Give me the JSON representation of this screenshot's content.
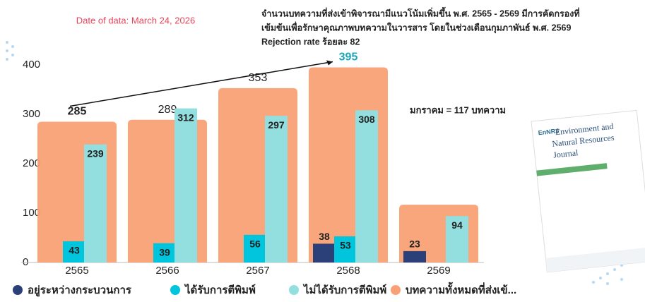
{
  "chart_data": {
    "type": "bar",
    "annotations": {
      "date": "Date of data: March 24, 2026",
      "summary": [
        "จำนวนบทความที่ส่งเข้าพิจารณามีแนวโน้มเพิ่มขึ้น พ.ศ. 2565 - 2569 มีการคัดกรองที่",
        "เข้มข้นเพื่อรักษาคุณภาพบทความในวารสาร  โดยในช่วงเดือนกุมภาพันธ์ พ.ศ. 2569",
        "Rejection rate ร้อยละ 82"
      ],
      "january": "มกราคม  = 117 บทความ"
    },
    "categories": [
      "2565",
      "2566",
      "2567",
      "2568",
      "2569"
    ],
    "series": [
      {
        "name": "บทความทั้งหมดที่ส่งเข้...",
        "color": "#f9a176",
        "values": [
          285,
          289,
          353,
          395,
          117
        ],
        "value_labels": [
          "285",
          "289",
          "353",
          "395",
          null
        ]
      },
      {
        "name": "อยู่ระหว่างกระบวนการ",
        "color": "#2b3f78",
        "values": [
          null,
          null,
          null,
          38,
          23
        ]
      },
      {
        "name": "ได้รับการตีพิมพ์",
        "color": "#00c5dc",
        "values": [
          43,
          39,
          56,
          53,
          null
        ]
      },
      {
        "name": "ไม่ได้รับการตีพิมพ์",
        "color": "#93dede",
        "values": [
          239,
          312,
          297,
          308,
          94
        ]
      }
    ],
    "ylim": [
      0,
      400
    ],
    "yticks": [
      0,
      100,
      200,
      300,
      400
    ],
    "cover": {
      "logo": "EnNRJ",
      "title": [
        "Environment and",
        "Natural Resources",
        "Journal"
      ]
    }
  }
}
